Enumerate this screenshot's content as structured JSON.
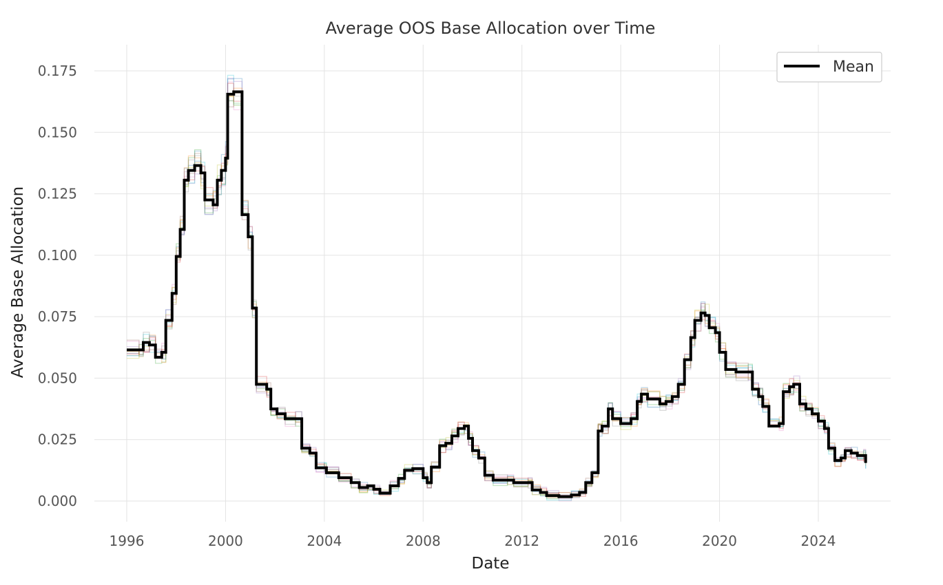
{
  "chart_data": {
    "type": "line",
    "title": "Average OOS Base Allocation over Time",
    "xlabel": "Date",
    "ylabel": "Average Base Allocation",
    "xlim": [
      "1995-12-31",
      "2025-07-01"
    ],
    "ylim": [
      0.0,
      0.175
    ],
    "x_ticks": [
      "1996",
      "2000",
      "2004",
      "2008",
      "2012",
      "2016",
      "2020",
      "2024"
    ],
    "y_ticks": [
      "0.000",
      "0.025",
      "0.050",
      "0.075",
      "0.100",
      "0.125",
      "0.150",
      "0.175"
    ],
    "grid": true,
    "legend": {
      "position": "top-right",
      "entries": [
        "Mean"
      ]
    },
    "line_style": "step",
    "series": [
      {
        "name": "Mean",
        "color": "#000000",
        "points": [
          [
            "1996-01-01",
            0.0615
          ],
          [
            "1996-07-01",
            0.0615
          ],
          [
            "1996-09-01",
            0.0645
          ],
          [
            "1996-12-01",
            0.0635
          ],
          [
            "1997-03-01",
            0.0585
          ],
          [
            "1997-06-01",
            0.0605
          ],
          [
            "1997-08-01",
            0.0735
          ],
          [
            "1997-11-01",
            0.0845
          ],
          [
            "1998-01-01",
            0.0995
          ],
          [
            "1998-03-01",
            0.1105
          ],
          [
            "1998-05-01",
            0.1305
          ],
          [
            "1998-07-01",
            0.1345
          ],
          [
            "1998-10-01",
            0.1365
          ],
          [
            "1999-01-01",
            0.1335
          ],
          [
            "1999-03-01",
            0.1225
          ],
          [
            "1999-07-01",
            0.1205
          ],
          [
            "1999-09-01",
            0.1305
          ],
          [
            "1999-11-01",
            0.1345
          ],
          [
            "2000-01-01",
            0.1395
          ],
          [
            "2000-02-01",
            0.1655
          ],
          [
            "2000-05-01",
            0.1665
          ],
          [
            "2000-09-01",
            0.1165
          ],
          [
            "2000-12-01",
            0.1075
          ],
          [
            "2001-02-01",
            0.0785
          ],
          [
            "2001-04-01",
            0.0475
          ],
          [
            "2001-09-01",
            0.0455
          ],
          [
            "2001-11-01",
            0.0375
          ],
          [
            "2002-02-01",
            0.0355
          ],
          [
            "2002-06-01",
            0.0335
          ],
          [
            "2002-11-01",
            0.0335
          ],
          [
            "2003-02-01",
            0.0215
          ],
          [
            "2003-06-01",
            0.0195
          ],
          [
            "2003-09-01",
            0.0135
          ],
          [
            "2004-01-01",
            0.0135
          ],
          [
            "2004-02-01",
            0.0115
          ],
          [
            "2004-08-01",
            0.0095
          ],
          [
            "2005-02-01",
            0.0075
          ],
          [
            "2005-06-01",
            0.0055
          ],
          [
            "2005-10-01",
            0.0062
          ],
          [
            "2006-01-01",
            0.0048
          ],
          [
            "2006-04-01",
            0.0032
          ],
          [
            "2006-09-01",
            0.0062
          ],
          [
            "2007-01-01",
            0.0092
          ],
          [
            "2007-04-01",
            0.0125
          ],
          [
            "2007-08-01",
            0.0132
          ],
          [
            "2008-01-01",
            0.0095
          ],
          [
            "2008-03-01",
            0.0075
          ],
          [
            "2008-05-01",
            0.0138
          ],
          [
            "2008-09-01",
            0.0225
          ],
          [
            "2008-12-01",
            0.0235
          ],
          [
            "2009-03-01",
            0.0265
          ],
          [
            "2009-06-01",
            0.0295
          ],
          [
            "2009-09-01",
            0.0305
          ],
          [
            "2009-11-01",
            0.0255
          ],
          [
            "2010-01-01",
            0.0205
          ],
          [
            "2010-04-01",
            0.0175
          ],
          [
            "2010-07-01",
            0.0105
          ],
          [
            "2010-11-01",
            0.0085
          ],
          [
            "2011-06-01",
            0.0085
          ],
          [
            "2011-09-01",
            0.0075
          ],
          [
            "2012-04-01",
            0.0075
          ],
          [
            "2012-06-01",
            0.0045
          ],
          [
            "2012-10-01",
            0.0035
          ],
          [
            "2013-01-01",
            0.0022
          ],
          [
            "2013-07-01",
            0.0018
          ],
          [
            "2014-01-01",
            0.0025
          ],
          [
            "2014-05-01",
            0.0035
          ],
          [
            "2014-08-01",
            0.0075
          ],
          [
            "2014-11-01",
            0.0115
          ],
          [
            "2015-02-01",
            0.0285
          ],
          [
            "2015-04-01",
            0.0305
          ],
          [
            "2015-07-01",
            0.0375
          ],
          [
            "2015-09-01",
            0.0335
          ],
          [
            "2016-01-01",
            0.0315
          ],
          [
            "2016-06-01",
            0.0335
          ],
          [
            "2016-09-01",
            0.0405
          ],
          [
            "2016-11-01",
            0.0435
          ],
          [
            "2017-02-01",
            0.0415
          ],
          [
            "2017-08-01",
            0.0395
          ],
          [
            "2017-11-01",
            0.0405
          ],
          [
            "2018-02-01",
            0.0425
          ],
          [
            "2018-05-01",
            0.0475
          ],
          [
            "2018-08-01",
            0.0575
          ],
          [
            "2018-11-01",
            0.0665
          ],
          [
            "2019-01-01",
            0.0735
          ],
          [
            "2019-04-01",
            0.0765
          ],
          [
            "2019-06-01",
            0.0755
          ],
          [
            "2019-08-01",
            0.0705
          ],
          [
            "2019-11-01",
            0.0685
          ],
          [
            "2020-01-01",
            0.0605
          ],
          [
            "2020-04-01",
            0.0535
          ],
          [
            "2020-09-01",
            0.0525
          ],
          [
            "2021-03-01",
            0.0525
          ],
          [
            "2021-05-01",
            0.0455
          ],
          [
            "2021-08-01",
            0.0425
          ],
          [
            "2021-10-01",
            0.0385
          ],
          [
            "2022-01-01",
            0.0305
          ],
          [
            "2022-06-01",
            0.0315
          ],
          [
            "2022-08-01",
            0.0445
          ],
          [
            "2022-11-01",
            0.0465
          ],
          [
            "2023-01-01",
            0.0475
          ],
          [
            "2023-04-01",
            0.0395
          ],
          [
            "2023-07-01",
            0.0375
          ],
          [
            "2023-10-01",
            0.0355
          ],
          [
            "2024-01-01",
            0.0325
          ],
          [
            "2024-04-01",
            0.0295
          ],
          [
            "2024-06-01",
            0.0215
          ],
          [
            "2024-09-01",
            0.0165
          ],
          [
            "2024-12-01",
            0.0175
          ],
          [
            "2025-02-01",
            0.0205
          ],
          [
            "2025-05-01",
            0.0195
          ],
          [
            "2025-08-01",
            0.0185
          ],
          [
            "2025-11-01",
            0.0185
          ],
          [
            "2025-12-01",
            0.0155
          ]
        ]
      }
    ]
  }
}
